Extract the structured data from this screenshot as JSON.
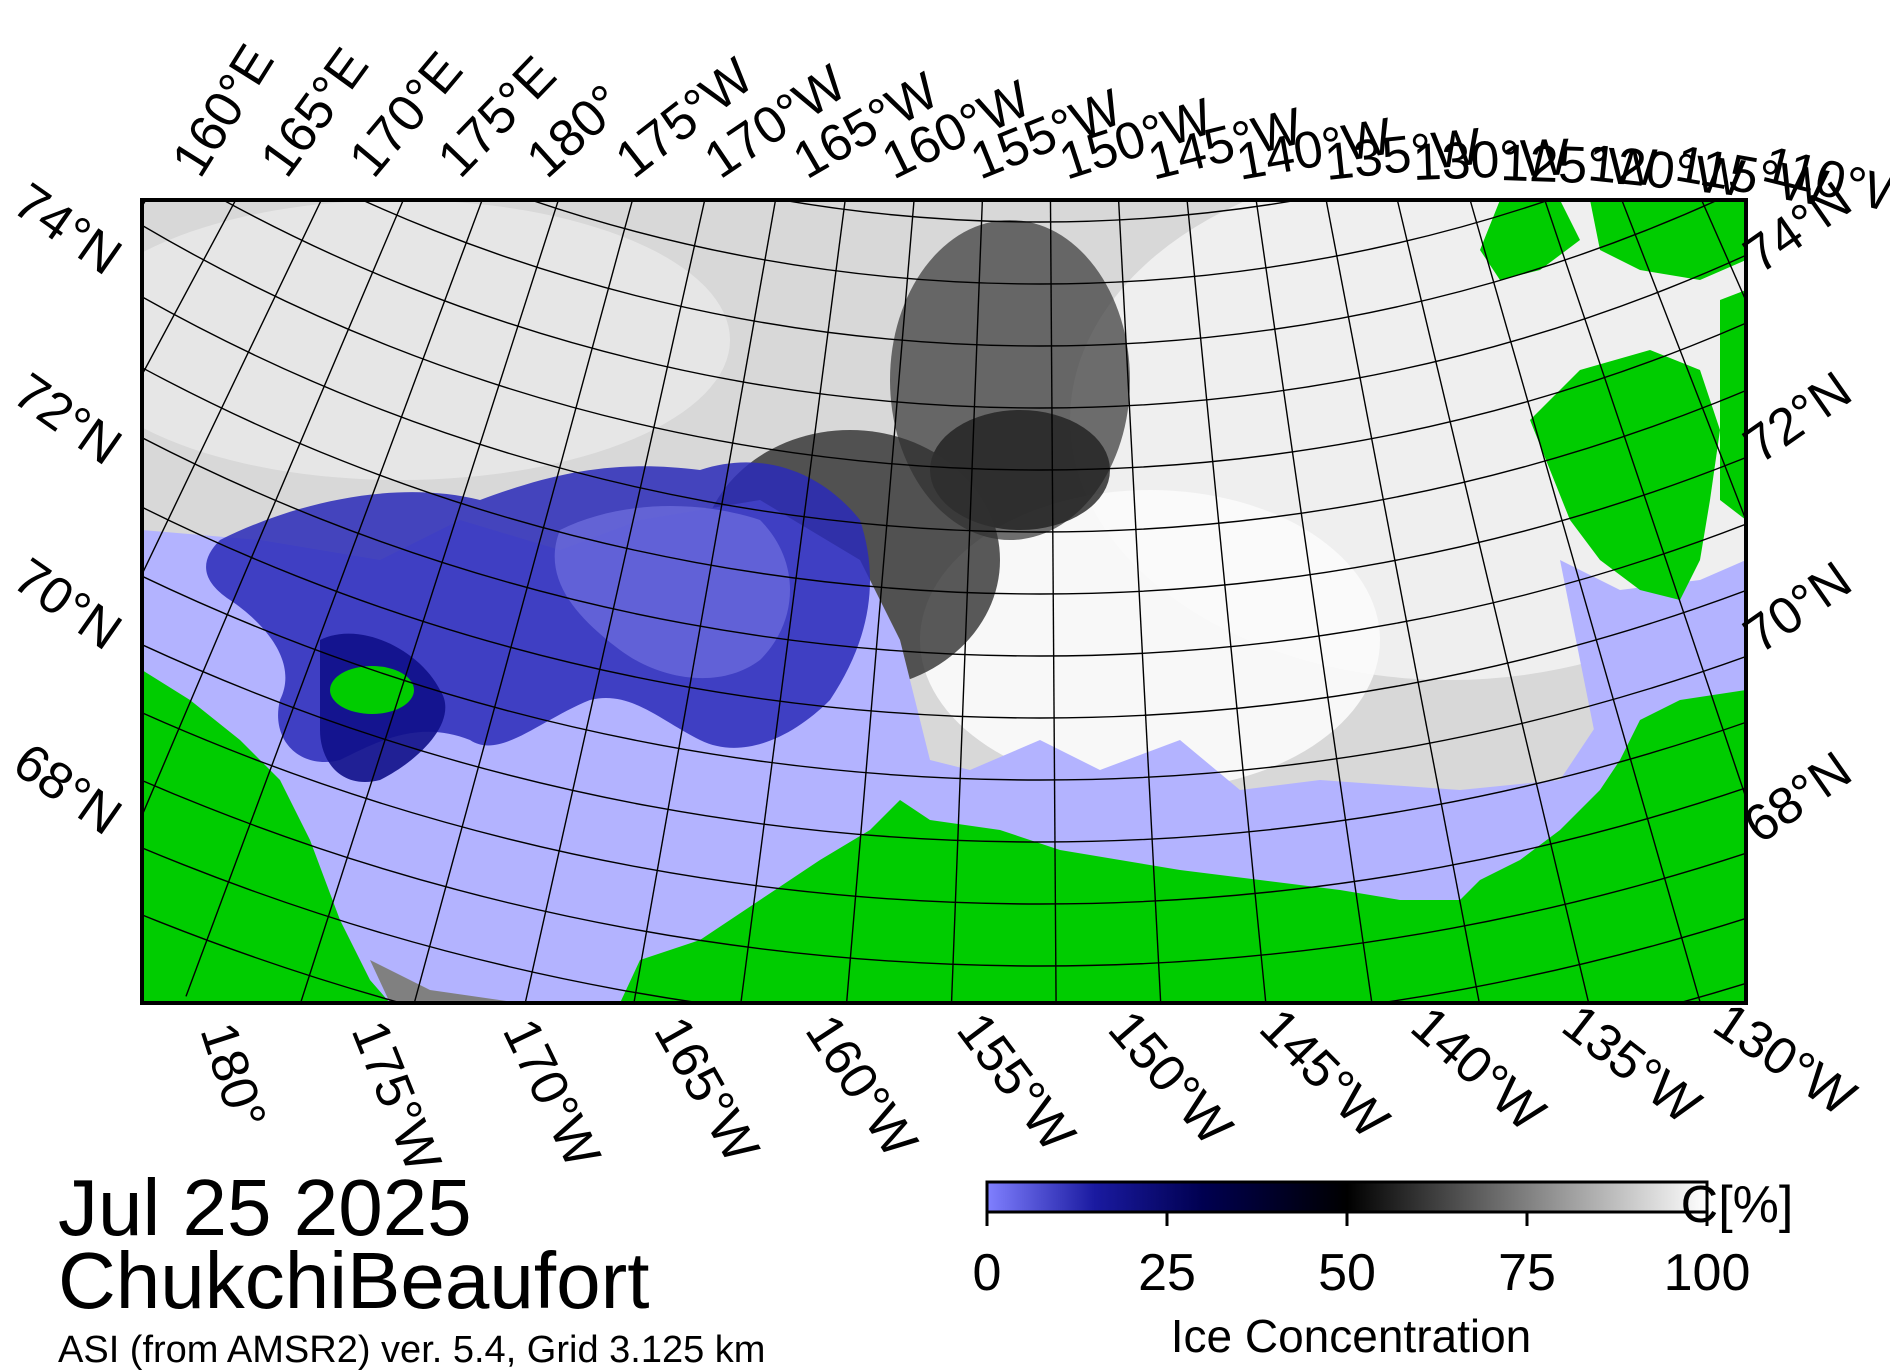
{
  "map": {
    "date": "Jul 25 2025",
    "region": "ChukchiBeaufort",
    "source": "ASI (from AMSR2) ver. 5.4,  Grid 3.125 km",
    "top_lon_labels": [
      "160°E",
      "165°E",
      "170°E",
      "175°E",
      "180°",
      "175°W",
      "170°W",
      "165°W",
      "160°W",
      "155°W",
      "150°W",
      "145°W",
      "140°W",
      "135°W",
      "130°W",
      "125°W",
      "120°W",
      "115°W",
      "110°W"
    ],
    "bottom_lon_labels": [
      "180°",
      "175°W",
      "170°W",
      "165°W",
      "160°W",
      "155°W",
      "150°W",
      "145°W",
      "140°W",
      "135°W",
      "130°W"
    ],
    "left_lat_labels": [
      "74°N",
      "72°N",
      "70°N",
      "68°N"
    ],
    "right_lat_labels": [
      "74°N",
      "72°N",
      "70°N",
      "68°N"
    ]
  },
  "colorbar": {
    "title": "Ice Concentration",
    "unit": "C[%]",
    "ticks": [
      "0",
      "25",
      "50",
      "75",
      "100"
    ],
    "stops": [
      {
        "value": 0,
        "color": "#8080ff"
      },
      {
        "value": 15,
        "color": "#1a1aa0"
      },
      {
        "value": 30,
        "color": "#000050"
      },
      {
        "value": 50,
        "color": "#000000"
      },
      {
        "value": 75,
        "color": "#808080"
      },
      {
        "value": 100,
        "color": "#ffffff"
      }
    ]
  },
  "colors": {
    "land": "#00cc00",
    "open_water": "#b3b3ff",
    "no_data": "#808080",
    "ice_low": "#1a1aa0",
    "ice_high": "#ffffff"
  }
}
